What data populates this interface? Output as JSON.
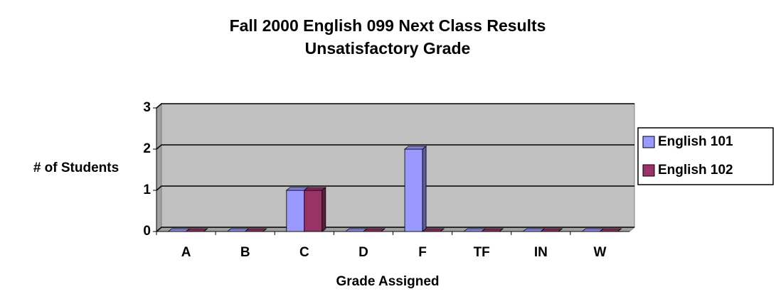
{
  "chart_data": {
    "type": "bar3d",
    "title": "Fall 2000 English 099 Next Class Results",
    "subtitle": "Unsatisfactory Grade",
    "x_label": "Grade Assigned",
    "y_label": "# of Students",
    "categories": [
      "A",
      "B",
      "C",
      "D",
      "F",
      "TF",
      "IN",
      "W"
    ],
    "series": [
      {
        "name": "English 101",
        "color": "#9999ff",
        "values": [
          0,
          0,
          1,
          0,
          2,
          0,
          0,
          0
        ]
      },
      {
        "name": "English 102",
        "color": "#993366",
        "values": [
          0,
          0,
          1,
          0,
          0,
          0,
          0,
          0
        ]
      }
    ],
    "ylim": [
      0,
      3
    ],
    "yticks": [
      0,
      1,
      2,
      3
    ],
    "grid": true,
    "legend": "right"
  }
}
